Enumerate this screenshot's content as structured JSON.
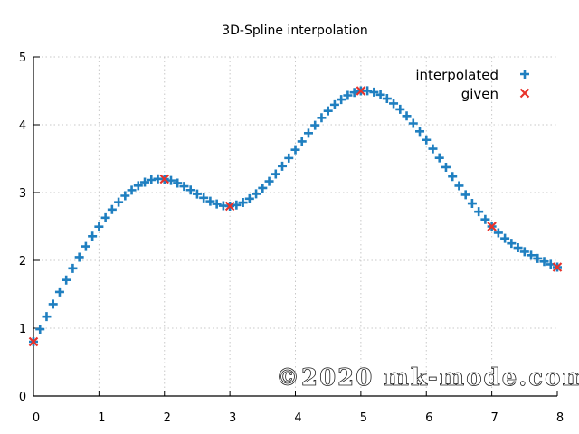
{
  "chart_data": {
    "type": "scatter",
    "title": "3D-Spline interpolation",
    "xlabel": "",
    "ylabel": "",
    "xlim": [
      0,
      8
    ],
    "ylim": [
      0,
      5
    ],
    "x_ticks": [
      "0",
      "1",
      "2",
      "3",
      "4",
      "5",
      "6",
      "7",
      "8"
    ],
    "y_ticks": [
      "0",
      "1",
      "2",
      "3",
      "4",
      "5"
    ],
    "grid": true,
    "legend_position": "top-right",
    "series": [
      {
        "name": "interpolated",
        "marker": "plus",
        "color": "#1f7fc0",
        "method": "natural cubic spline through given points",
        "x_start": 0,
        "x_end": 8,
        "x_step": 0.1
      },
      {
        "name": "given",
        "marker": "cross",
        "color": "#e8322a",
        "x": [
          0,
          2,
          3,
          5,
          7,
          8
        ],
        "y": [
          0.8,
          3.2,
          2.8,
          4.5,
          2.5,
          1.9
        ]
      }
    ]
  },
  "watermark": "©2020 mk-mode.com"
}
